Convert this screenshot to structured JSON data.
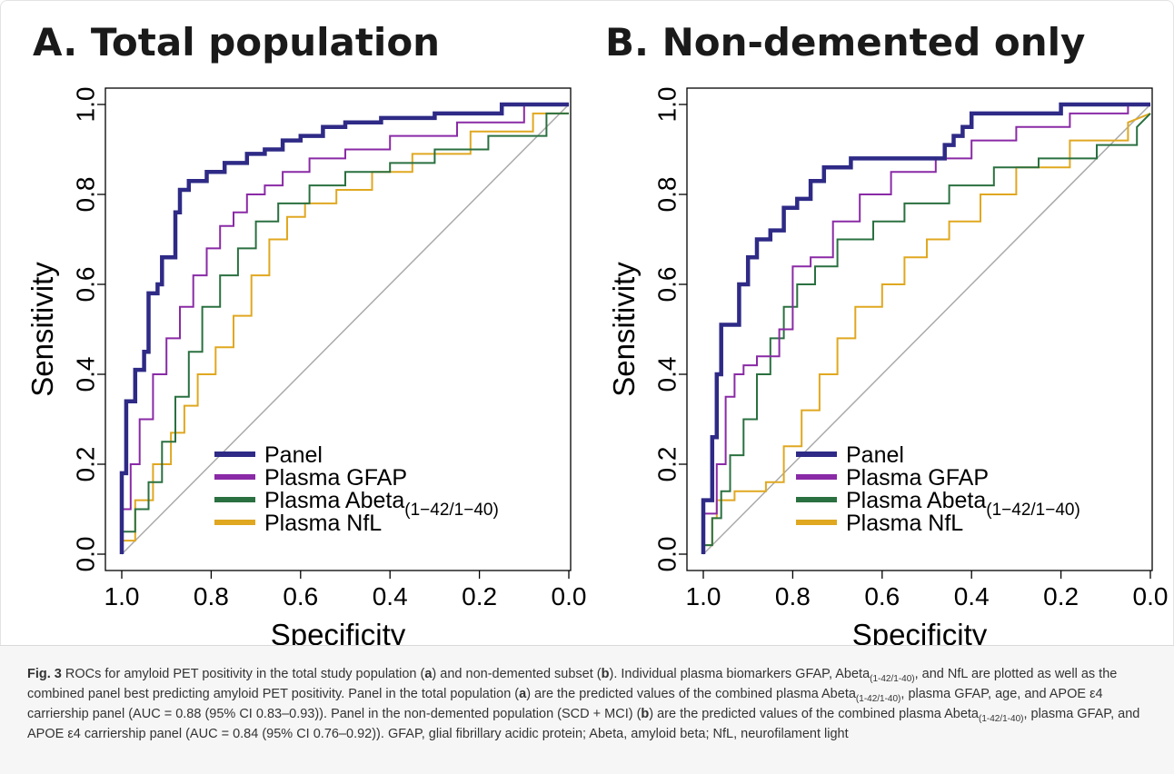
{
  "panels": [
    {
      "title": "A. Total population"
    },
    {
      "title": "B. Non-demented only"
    }
  ],
  "caption": {
    "label": "Fig. 3",
    "t1": " ROCs for amyloid PET positivity in the total study population (",
    "t2": ") and non-demented subset (",
    "t3": "). Individual plasma biomarkers GFAP, Abeta",
    "t4": ", and NfL are plotted as well as the combined panel best predicting amyloid PET positivity. Panel in the total population (",
    "t5": ") are the predicted values of the combined plasma Abeta",
    "t6": ", plasma GFAP, age, and APOE ε4 carriership panel (AUC = 0.88 (95% CI 0.83–0.93)). Panel in the non-demented population (SCD + MCI) (",
    "t7": ") are the predicted values of the combined plasma Abeta",
    "t8": ", plasma GFAP, and APOE ε4 carriership panel (AUC = 0.84 (95% CI 0.76–0.92)). GFAP, glial fibrillary acidic protein; Abeta, amyloid beta; NfL, neurofilament light",
    "a": "a",
    "b": "b",
    "sub": "(1-42/1-40)"
  },
  "chart_data": [
    {
      "type": "line",
      "title": "A. Total population",
      "xlabel": "Specificity",
      "ylabel": "Sensitivity",
      "xlim": [
        1.0,
        0.0
      ],
      "ylim": [
        0.0,
        1.0
      ],
      "x_reversed": true,
      "xticks": [
        "1.0",
        "0.8",
        "0.6",
        "0.4",
        "0.2",
        "0.0"
      ],
      "yticks": [
        "0.0",
        "0.2",
        "0.4",
        "0.6",
        "0.8",
        "1.0"
      ],
      "grid": false,
      "legend_position": "bottom-right",
      "reference_line": {
        "x": [
          1.0,
          0.0
        ],
        "y": [
          0.0,
          1.0
        ],
        "color": "#aaaaaa"
      },
      "series": [
        {
          "name": "Panel",
          "color": "#2e2a86",
          "width": 4.5,
          "x": [
            1.0,
            1.0,
            0.99,
            0.99,
            0.97,
            0.97,
            0.95,
            0.95,
            0.94,
            0.94,
            0.92,
            0.92,
            0.91,
            0.91,
            0.88,
            0.88,
            0.87,
            0.87,
            0.85,
            0.85,
            0.81,
            0.81,
            0.77,
            0.77,
            0.72,
            0.72,
            0.68,
            0.68,
            0.64,
            0.64,
            0.6,
            0.6,
            0.55,
            0.55,
            0.5,
            0.5,
            0.42,
            0.42,
            0.3,
            0.3,
            0.15,
            0.15,
            0.0
          ],
          "y": [
            0.0,
            0.18,
            0.18,
            0.34,
            0.34,
            0.41,
            0.41,
            0.45,
            0.45,
            0.58,
            0.58,
            0.6,
            0.6,
            0.66,
            0.66,
            0.76,
            0.76,
            0.81,
            0.81,
            0.83,
            0.83,
            0.85,
            0.85,
            0.87,
            0.87,
            0.89,
            0.89,
            0.9,
            0.9,
            0.92,
            0.92,
            0.93,
            0.93,
            0.95,
            0.95,
            0.96,
            0.96,
            0.97,
            0.97,
            0.98,
            0.98,
            1.0,
            1.0
          ]
        },
        {
          "name": "Plasma GFAP",
          "color": "#8a2aa6",
          "width": 2,
          "x": [
            1.0,
            1.0,
            0.98,
            0.98,
            0.96,
            0.96,
            0.93,
            0.93,
            0.9,
            0.9,
            0.87,
            0.87,
            0.84,
            0.84,
            0.81,
            0.81,
            0.78,
            0.78,
            0.75,
            0.75,
            0.72,
            0.72,
            0.68,
            0.68,
            0.64,
            0.64,
            0.58,
            0.58,
            0.5,
            0.5,
            0.4,
            0.4,
            0.25,
            0.25,
            0.1,
            0.1,
            0.0
          ],
          "y": [
            0.0,
            0.1,
            0.1,
            0.2,
            0.2,
            0.3,
            0.3,
            0.4,
            0.4,
            0.48,
            0.48,
            0.55,
            0.55,
            0.62,
            0.62,
            0.68,
            0.68,
            0.73,
            0.73,
            0.76,
            0.76,
            0.8,
            0.8,
            0.82,
            0.82,
            0.85,
            0.85,
            0.88,
            0.88,
            0.9,
            0.9,
            0.93,
            0.93,
            0.96,
            0.96,
            1.0,
            1.0
          ]
        },
        {
          "name": "Plasma Abeta(1-42/1-40)",
          "color": "#2a7040",
          "width": 2,
          "x": [
            1.0,
            1.0,
            0.97,
            0.97,
            0.94,
            0.94,
            0.91,
            0.91,
            0.88,
            0.88,
            0.85,
            0.85,
            0.82,
            0.82,
            0.78,
            0.78,
            0.74,
            0.74,
            0.7,
            0.7,
            0.65,
            0.65,
            0.58,
            0.58,
            0.5,
            0.5,
            0.4,
            0.4,
            0.3,
            0.3,
            0.18,
            0.18,
            0.05,
            0.05,
            0.0
          ],
          "y": [
            0.0,
            0.05,
            0.05,
            0.1,
            0.1,
            0.16,
            0.16,
            0.25,
            0.25,
            0.35,
            0.35,
            0.45,
            0.45,
            0.55,
            0.55,
            0.62,
            0.62,
            0.68,
            0.68,
            0.74,
            0.74,
            0.78,
            0.78,
            0.82,
            0.82,
            0.85,
            0.85,
            0.87,
            0.87,
            0.9,
            0.9,
            0.93,
            0.93,
            0.98,
            0.98
          ]
        },
        {
          "name": "Plasma NfL",
          "color": "#e0a820",
          "width": 2,
          "x": [
            1.0,
            1.0,
            0.97,
            0.97,
            0.93,
            0.93,
            0.89,
            0.89,
            0.86,
            0.86,
            0.83,
            0.83,
            0.79,
            0.79,
            0.75,
            0.75,
            0.71,
            0.71,
            0.67,
            0.67,
            0.63,
            0.63,
            0.59,
            0.59,
            0.52,
            0.52,
            0.44,
            0.44,
            0.35,
            0.35,
            0.22,
            0.22,
            0.08,
            0.08,
            0.0
          ],
          "y": [
            0.0,
            0.03,
            0.03,
            0.12,
            0.12,
            0.2,
            0.2,
            0.27,
            0.27,
            0.33,
            0.33,
            0.4,
            0.4,
            0.46,
            0.46,
            0.53,
            0.53,
            0.62,
            0.62,
            0.7,
            0.7,
            0.75,
            0.75,
            0.78,
            0.78,
            0.81,
            0.81,
            0.85,
            0.85,
            0.89,
            0.89,
            0.94,
            0.94,
            0.98,
            0.98
          ]
        }
      ]
    },
    {
      "type": "line",
      "title": "B. Non-demented only",
      "xlabel": "Specificity",
      "ylabel": "Sensitivity",
      "xlim": [
        1.0,
        0.0
      ],
      "ylim": [
        0.0,
        1.0
      ],
      "x_reversed": true,
      "xticks": [
        "1.0",
        "0.8",
        "0.6",
        "0.4",
        "0.2",
        "0.0"
      ],
      "yticks": [
        "0.0",
        "0.2",
        "0.4",
        "0.6",
        "0.8",
        "1.0"
      ],
      "grid": false,
      "legend_position": "bottom-right",
      "reference_line": {
        "x": [
          1.0,
          0.0
        ],
        "y": [
          0.0,
          1.0
        ],
        "color": "#aaaaaa"
      },
      "series": [
        {
          "name": "Panel",
          "color": "#2e2a86",
          "width": 4.5,
          "x": [
            1.0,
            1.0,
            0.98,
            0.98,
            0.97,
            0.97,
            0.96,
            0.96,
            0.95,
            0.95,
            0.92,
            0.92,
            0.9,
            0.9,
            0.88,
            0.88,
            0.85,
            0.85,
            0.82,
            0.82,
            0.79,
            0.79,
            0.76,
            0.76,
            0.73,
            0.73,
            0.7,
            0.7,
            0.67,
            0.67,
            0.6,
            0.6,
            0.46,
            0.46,
            0.44,
            0.44,
            0.42,
            0.42,
            0.4,
            0.4,
            0.2,
            0.2,
            0.0
          ],
          "y": [
            0.0,
            0.12,
            0.12,
            0.26,
            0.26,
            0.4,
            0.4,
            0.51,
            0.51,
            0.51,
            0.51,
            0.6,
            0.6,
            0.66,
            0.66,
            0.7,
            0.7,
            0.72,
            0.72,
            0.77,
            0.77,
            0.79,
            0.79,
            0.83,
            0.83,
            0.86,
            0.86,
            0.86,
            0.86,
            0.88,
            0.88,
            0.88,
            0.88,
            0.91,
            0.91,
            0.93,
            0.93,
            0.95,
            0.95,
            0.98,
            0.98,
            1.0,
            1.0
          ]
        },
        {
          "name": "Plasma GFAP",
          "color": "#8a2aa6",
          "width": 2,
          "x": [
            1.0,
            1.0,
            0.97,
            0.97,
            0.95,
            0.95,
            0.93,
            0.93,
            0.91,
            0.91,
            0.88,
            0.88,
            0.83,
            0.83,
            0.8,
            0.8,
            0.76,
            0.76,
            0.71,
            0.71,
            0.65,
            0.65,
            0.58,
            0.58,
            0.48,
            0.48,
            0.4,
            0.4,
            0.3,
            0.3,
            0.18,
            0.18,
            0.05,
            0.05,
            0.0
          ],
          "y": [
            0.0,
            0.09,
            0.09,
            0.2,
            0.2,
            0.35,
            0.35,
            0.4,
            0.4,
            0.42,
            0.42,
            0.44,
            0.44,
            0.5,
            0.5,
            0.64,
            0.64,
            0.66,
            0.66,
            0.74,
            0.74,
            0.8,
            0.8,
            0.85,
            0.85,
            0.88,
            0.88,
            0.92,
            0.92,
            0.95,
            0.95,
            0.98,
            0.98,
            1.0,
            1.0
          ]
        },
        {
          "name": "Plasma Abeta(1-42/1-40)",
          "color": "#2a7040",
          "width": 2,
          "x": [
            1.0,
            1.0,
            0.98,
            0.98,
            0.96,
            0.96,
            0.94,
            0.94,
            0.91,
            0.91,
            0.88,
            0.88,
            0.85,
            0.85,
            0.82,
            0.82,
            0.79,
            0.79,
            0.75,
            0.75,
            0.7,
            0.7,
            0.62,
            0.62,
            0.55,
            0.55,
            0.45,
            0.45,
            0.35,
            0.35,
            0.25,
            0.25,
            0.12,
            0.12,
            0.03,
            0.03,
            0.0
          ],
          "y": [
            0.0,
            0.02,
            0.02,
            0.08,
            0.08,
            0.14,
            0.14,
            0.22,
            0.22,
            0.3,
            0.3,
            0.4,
            0.4,
            0.48,
            0.48,
            0.55,
            0.55,
            0.6,
            0.6,
            0.64,
            0.64,
            0.7,
            0.7,
            0.74,
            0.74,
            0.78,
            0.78,
            0.82,
            0.82,
            0.86,
            0.86,
            0.88,
            0.88,
            0.91,
            0.91,
            0.95,
            0.98
          ]
        },
        {
          "name": "Plasma NfL",
          "color": "#e0a820",
          "width": 2,
          "x": [
            1.0,
            1.0,
            0.98,
            0.98,
            0.97,
            0.97,
            0.93,
            0.93,
            0.86,
            0.86,
            0.82,
            0.82,
            0.78,
            0.78,
            0.74,
            0.74,
            0.7,
            0.7,
            0.66,
            0.66,
            0.6,
            0.6,
            0.55,
            0.55,
            0.5,
            0.5,
            0.45,
            0.45,
            0.38,
            0.38,
            0.3,
            0.3,
            0.18,
            0.18,
            0.05,
            0.05,
            0.0
          ],
          "y": [
            0.0,
            0.02,
            0.02,
            0.08,
            0.08,
            0.12,
            0.12,
            0.14,
            0.14,
            0.16,
            0.16,
            0.24,
            0.24,
            0.32,
            0.32,
            0.4,
            0.4,
            0.48,
            0.48,
            0.55,
            0.55,
            0.6,
            0.6,
            0.66,
            0.66,
            0.7,
            0.7,
            0.74,
            0.74,
            0.8,
            0.8,
            0.86,
            0.86,
            0.92,
            0.92,
            0.96,
            0.98
          ]
        }
      ]
    }
  ]
}
